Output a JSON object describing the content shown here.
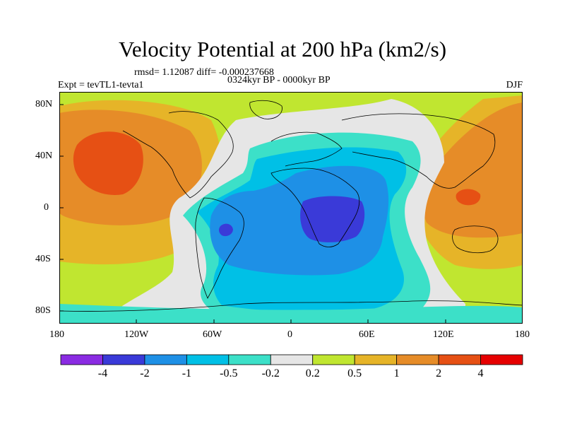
{
  "title": "Velocity Potential at 200 hPa (km2/s)",
  "stats_line": "rmsd= 1.12087 diff= -0.000237668",
  "period": "0324kyr BP - 0000kyr BP",
  "experiment": "Expt = tevTL1-tevta1",
  "season": "DJF",
  "lat_ticks": [
    "80N",
    "40N",
    "0",
    "40S",
    "80S"
  ],
  "lon_ticks": [
    "180",
    "120W",
    "60W",
    "0",
    "60E",
    "120E",
    "180"
  ],
  "colorbar": {
    "colors": [
      "#8a2be2",
      "#3a3ad8",
      "#1e90e6",
      "#00c0e6",
      "#3ce0c8",
      "#e6e6e6",
      "#c0e630",
      "#e6b428",
      "#e68c28",
      "#e65014",
      "#e60000"
    ],
    "labels": [
      "-4",
      "-2",
      "-1",
      "-0.5",
      "-0.2",
      "0.2",
      "0.5",
      "1",
      "2",
      "4"
    ]
  }
}
